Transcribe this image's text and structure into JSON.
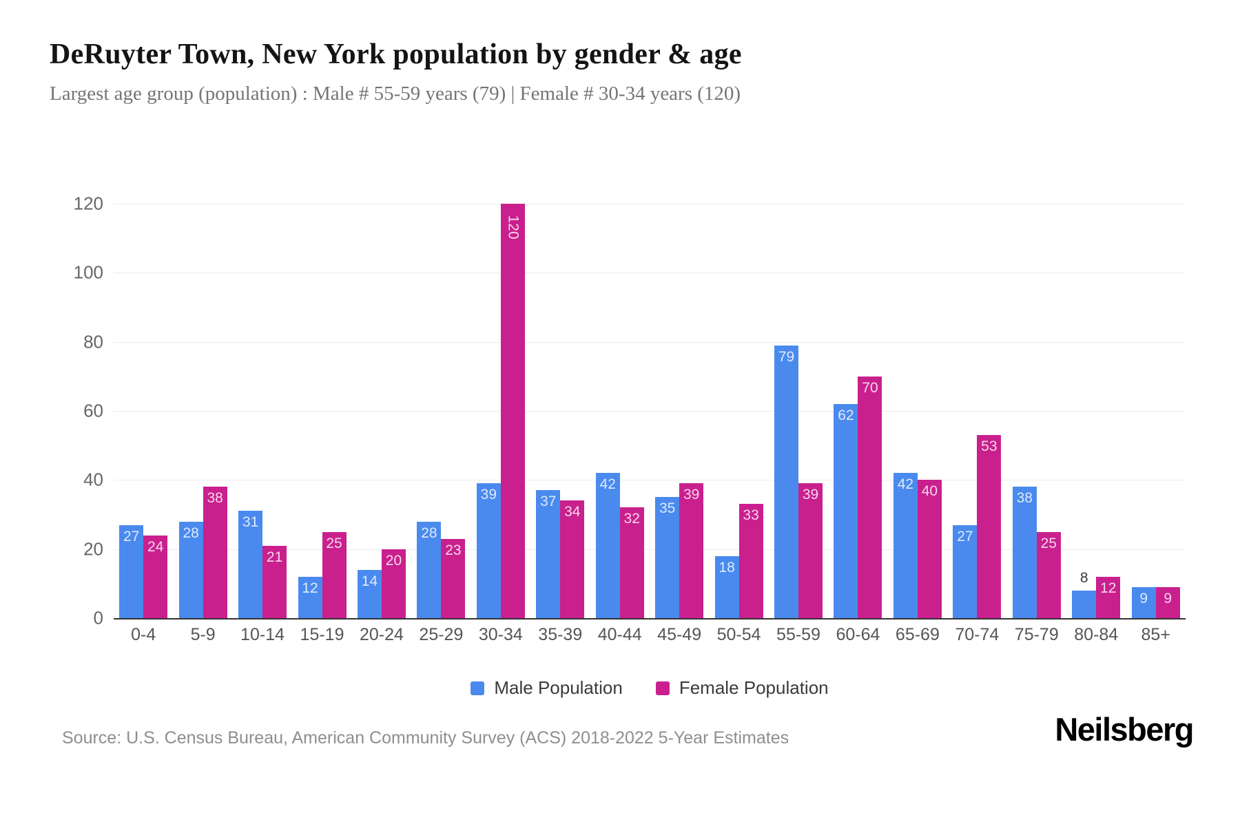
{
  "header": {
    "title": "DeRuyter Town, New York population by gender & age",
    "subtitle": "Largest age group (population) : Male # 55-59 years (79) | Female # 30-34 years (120)"
  },
  "chart_data": {
    "type": "bar",
    "title": "DeRuyter Town, New York population by gender & age",
    "categories": [
      "0-4",
      "5-9",
      "10-14",
      "15-19",
      "20-24",
      "25-29",
      "30-34",
      "35-39",
      "40-44",
      "45-49",
      "50-54",
      "55-59",
      "60-64",
      "65-69",
      "70-74",
      "75-79",
      "80-84",
      "85+"
    ],
    "series": [
      {
        "name": "Male Population",
        "key": "male",
        "color": "#4A8AEE",
        "values": [
          27,
          28,
          31,
          12,
          14,
          28,
          39,
          37,
          42,
          35,
          18,
          79,
          62,
          42,
          27,
          38,
          8,
          9
        ]
      },
      {
        "name": "Female Population",
        "key": "female",
        "color": "#C9208E",
        "values": [
          24,
          38,
          21,
          25,
          20,
          23,
          120,
          34,
          32,
          39,
          33,
          39,
          70,
          40,
          53,
          25,
          12,
          9
        ]
      }
    ],
    "xlabel": "",
    "ylabel": "",
    "ylim": [
      0,
      120
    ],
    "yticks": [
      0,
      20,
      40,
      60,
      80,
      100,
      120
    ],
    "grid": true,
    "legend_position": "bottom",
    "colors": {
      "grid": "#ececec",
      "axis_line": "#333333",
      "value_label_inside": "rgba(255,255,255,0.82)",
      "value_label_outside": "#3a3a3a"
    }
  },
  "legend": {
    "items": [
      {
        "label": "Male Population",
        "color": "#4A8AEE"
      },
      {
        "label": "Female Population",
        "color": "#C9208E"
      }
    ]
  },
  "footer": {
    "source": "Source: U.S. Census Bureau, American Community Survey (ACS) 2018-2022 5-Year Estimates",
    "brand": "Neilsberg"
  }
}
